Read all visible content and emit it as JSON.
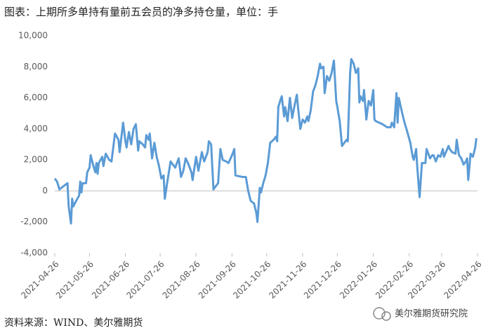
{
  "chart_data": {
    "type": "line",
    "title": "图表：上期所多单持有量前五会员的净多持仓量，单位：手",
    "source": "资料来源：WIND、美尔雅期货",
    "watermark": "美尔雅期货研究院",
    "x": [
      "2021-04-26",
      "2021-04-28",
      "2021-04-30",
      "2021-05-07",
      "2021-05-08",
      "2021-05-10",
      "2021-05-11",
      "2021-05-12",
      "2021-05-14",
      "2021-05-17",
      "2021-05-18",
      "2021-05-19",
      "2021-05-20",
      "2021-05-23",
      "2021-05-24",
      "2021-05-26",
      "2021-05-27",
      "2021-05-29",
      "2021-05-31",
      "2021-06-01",
      "2021-06-02",
      "2021-06-03",
      "2021-06-06",
      "2021-06-07",
      "2021-06-09",
      "2021-06-12",
      "2021-06-14",
      "2021-06-17",
      "2021-06-20",
      "2021-06-21",
      "2021-06-24",
      "2021-06-26",
      "2021-06-27",
      "2021-06-29",
      "2021-07-01",
      "2021-07-03",
      "2021-07-05",
      "2021-07-07",
      "2021-07-08",
      "2021-07-11",
      "2021-07-13",
      "2021-07-14",
      "2021-07-16",
      "2021-07-17",
      "2021-07-19",
      "2021-07-21",
      "2021-07-23",
      "2021-07-25",
      "2021-07-27",
      "2021-07-29",
      "2021-07-30",
      "2021-08-01",
      "2021-08-04",
      "2021-08-06",
      "2021-08-08",
      "2021-08-11",
      "2021-08-13",
      "2021-08-15",
      "2021-08-17",
      "2021-08-19",
      "2021-08-22",
      "2021-08-23",
      "2021-08-26",
      "2021-08-28",
      "2021-08-31",
      "2021-09-02",
      "2021-09-05",
      "2021-09-06",
      "2021-09-08",
      "2021-09-10",
      "2021-09-12",
      "2021-09-14",
      "2021-09-16",
      "2021-09-18",
      "2021-09-21",
      "2021-09-23",
      "2021-09-26",
      "2021-09-28",
      "2021-09-29",
      "2021-10-05",
      "2021-10-08",
      "2021-10-10",
      "2021-10-12",
      "2021-10-13",
      "2021-10-15",
      "2021-10-17",
      "2021-10-18",
      "2021-10-20",
      "2021-10-21",
      "2021-10-23",
      "2021-10-25",
      "2021-10-27",
      "2021-10-29",
      "2021-11-01",
      "2021-11-03",
      "2021-11-04",
      "2021-11-05",
      "2021-11-07",
      "2021-11-08",
      "2021-11-10",
      "2021-11-11",
      "2021-11-13",
      "2021-11-15",
      "2021-11-17",
      "2021-11-19",
      "2021-11-21",
      "2021-11-22",
      "2021-11-24",
      "2021-11-26",
      "2021-11-28",
      "2021-11-30",
      "2021-12-01",
      "2021-12-03",
      "2021-12-05",
      "2021-12-07",
      "2021-12-09",
      "2021-12-11",
      "2021-12-12",
      "2021-12-14",
      "2021-12-15",
      "2021-12-17",
      "2021-12-19",
      "2021-12-21",
      "2021-12-23",
      "2021-12-25",
      "2021-12-26",
      "2021-12-28",
      "2021-12-30",
      "2022-01-01",
      "2022-01-03",
      "2022-01-04",
      "2022-01-06",
      "2022-01-07",
      "2022-01-09",
      "2022-01-11",
      "2022-01-13",
      "2022-01-14",
      "2022-01-15",
      "2022-01-17",
      "2022-01-18",
      "2022-01-20",
      "2022-01-22",
      "2022-01-24",
      "2022-01-26",
      "2022-01-27",
      "2022-01-28",
      "2022-02-03",
      "2022-02-07",
      "2022-02-10",
      "2022-02-11",
      "2022-02-13",
      "2022-02-15",
      "2022-02-16",
      "2022-02-17",
      "2022-02-20",
      "2022-02-22",
      "2022-02-24",
      "2022-02-27",
      "2022-03-01",
      "2022-03-02",
      "2022-03-04",
      "2022-03-05",
      "2022-03-07",
      "2022-03-09",
      "2022-03-12",
      "2022-03-13",
      "2022-03-16",
      "2022-03-18",
      "2022-03-19",
      "2022-03-21",
      "2022-03-23",
      "2022-03-25",
      "2022-03-27",
      "2022-03-28",
      "2022-04-01",
      "2022-04-02",
      "2022-04-04",
      "2022-04-07",
      "2022-04-08",
      "2022-04-10",
      "2022-04-12",
      "2022-04-14",
      "2022-04-16",
      "2022-04-17",
      "2022-04-18",
      "2022-04-20",
      "2022-04-22",
      "2022-04-24",
      "2022-04-25"
    ],
    "series": [
      {
        "name": "净多持仓量",
        "color": "#5b9bd5",
        "values": [
          800,
          600,
          100,
          500,
          -1000,
          -2100,
          -500,
          -1000,
          -700,
          -300,
          600,
          -100,
          500,
          500,
          1200,
          1500,
          2300,
          1700,
          1200,
          1800,
          1100,
          1800,
          2200,
          1600,
          2400,
          2000,
          1900,
          3700,
          3300,
          2500,
          4400,
          3200,
          2800,
          3800,
          3000,
          4000,
          4300,
          2600,
          3200,
          3000,
          2800,
          3600,
          3300,
          3700,
          2100,
          3100,
          2200,
          1600,
          800,
          1000,
          -500,
          500,
          1900,
          1700,
          1500,
          2100,
          900,
          1300,
          2100,
          1800,
          1200,
          700,
          2200,
          1300,
          2500,
          1900,
          2500,
          3200,
          3000,
          100,
          300,
          500,
          2700,
          2000,
          1900,
          1800,
          2300,
          2700,
          1000,
          900,
          900,
          0,
          -600,
          -700,
          -800,
          -1400,
          -2000,
          200,
          -100,
          500,
          1000,
          1800,
          3100,
          3300,
          3500,
          3200,
          5400,
          5900,
          6100,
          4800,
          5400,
          4500,
          6000,
          4700,
          5500,
          6200,
          5400,
          4000,
          4600,
          4400,
          4800,
          4500,
          5200,
          6400,
          6800,
          7400,
          8200,
          7900,
          8000,
          6300,
          7400,
          7100,
          7600,
          8400,
          5800,
          5400,
          4500,
          2900,
          3100,
          3300,
          3200,
          7600,
          8500,
          8200,
          7600,
          7900,
          5700,
          6100,
          5800,
          6500,
          4600,
          5800,
          5500,
          6500,
          4600,
          4500,
          4300,
          4100,
          4100,
          4400,
          4100,
          6300,
          4400,
          6000,
          5000,
          4400,
          3900,
          3100,
          2200,
          2000,
          2700,
          1500,
          -400,
          1800,
          1800,
          2700,
          2100,
          2300,
          2300,
          1900,
          2300,
          2200,
          2700,
          2200,
          2900,
          2700,
          2500,
          2400,
          3300,
          2300,
          2100,
          1700,
          1900,
          2100,
          700,
          2400,
          2200,
          2800,
          3400
        ]
      }
    ],
    "xlim": [
      "2021-04-26",
      "2022-04-26"
    ],
    "xticks": [
      "2021-04-26",
      "2021-05-26",
      "2021-06-26",
      "2021-07-26",
      "2021-08-26",
      "2021-09-26",
      "2021-10-26",
      "2021-11-26",
      "2021-12-26",
      "2022-01-26",
      "2022-02-26",
      "2022-03-26",
      "2022-04-26"
    ],
    "ylim": [
      -4000,
      10000
    ],
    "yticks": [
      {
        "value": -4000,
        "label": "-4,000"
      },
      {
        "value": -2000,
        "label": "-2,000"
      },
      0,
      {
        "value": 2000,
        "label": "2,000"
      },
      {
        "value": 4000,
        "label": "4,000"
      },
      {
        "value": 6000,
        "label": "6,000"
      },
      {
        "value": 8000,
        "label": "8,000"
      },
      {
        "value": 10000,
        "label": "10,000"
      }
    ],
    "grid": false
  }
}
